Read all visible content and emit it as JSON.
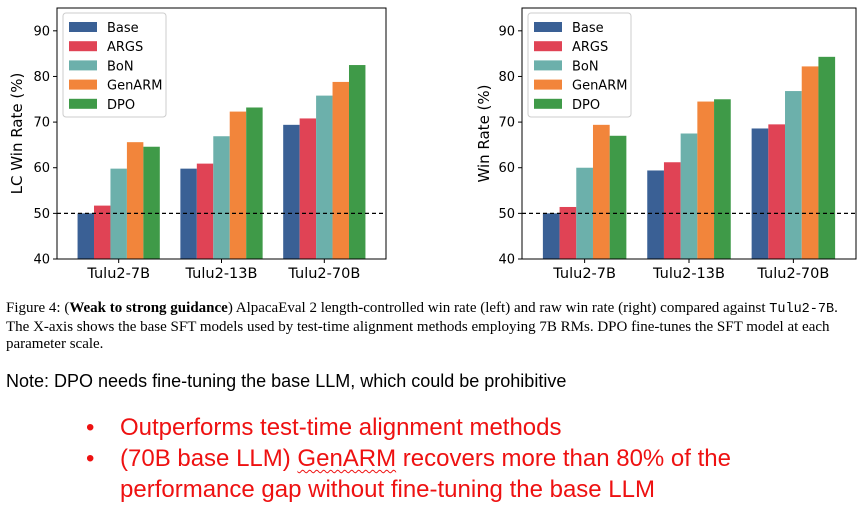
{
  "chart_data": [
    {
      "type": "bar",
      "title": "",
      "xlabel": "",
      "ylabel": "LC Win Rate (%)",
      "ylim": [
        40,
        95
      ],
      "yticks": [
        40,
        50,
        60,
        70,
        80,
        90
      ],
      "grid": false,
      "legend_position": "top-left",
      "reference_line": {
        "y": 50,
        "style": "dashed",
        "color": "#000000"
      },
      "categories": [
        "Tulu2-7B",
        "Tulu2-13B",
        "Tulu2-70B"
      ],
      "series": [
        {
          "name": "Base",
          "color": "#3a6095",
          "values": [
            50.0,
            59.8,
            69.4
          ]
        },
        {
          "name": "ARGS",
          "color": "#e04355",
          "values": [
            51.7,
            60.9,
            70.8
          ]
        },
        {
          "name": "BoN",
          "color": "#6cb0ab",
          "values": [
            59.8,
            66.9,
            75.8
          ]
        },
        {
          "name": "GenARM",
          "color": "#f2853b",
          "values": [
            65.6,
            72.3,
            78.8
          ]
        },
        {
          "name": "DPO",
          "color": "#3f9a48",
          "values": [
            64.6,
            73.2,
            82.5
          ]
        }
      ]
    },
    {
      "type": "bar",
      "title": "",
      "xlabel": "",
      "ylabel": "Win Rate (%)",
      "ylim": [
        40,
        95
      ],
      "yticks": [
        40,
        50,
        60,
        70,
        80,
        90
      ],
      "grid": false,
      "legend_position": "top-left",
      "reference_line": {
        "y": 50,
        "style": "dashed",
        "color": "#000000"
      },
      "categories": [
        "Tulu2-7B",
        "Tulu2-13B",
        "Tulu2-70B"
      ],
      "series": [
        {
          "name": "Base",
          "color": "#3a6095",
          "values": [
            50.0,
            59.4,
            68.6
          ]
        },
        {
          "name": "ARGS",
          "color": "#e04355",
          "values": [
            51.4,
            61.2,
            69.5
          ]
        },
        {
          "name": "BoN",
          "color": "#6cb0ab",
          "values": [
            60.0,
            67.5,
            76.8
          ]
        },
        {
          "name": "GenARM",
          "color": "#f2853b",
          "values": [
            69.4,
            74.5,
            82.2
          ]
        },
        {
          "name": "DPO",
          "color": "#3f9a48",
          "values": [
            67.0,
            75.0,
            84.3
          ]
        }
      ]
    }
  ],
  "caption": {
    "prefix": "Figure 4: (",
    "bold": "Weak to strong guidance",
    "part1": ") AlpacaEval 2 length-controlled win rate (left) and raw win rate (right) compared against ",
    "mono": "Tulu2-7B",
    "part2": ". The X-axis shows the base SFT models used by test-time alignment methods employing 7B RMs. DPO fine-tunes the SFT model at each parameter scale."
  },
  "note": "Note: DPO needs fine-tuning the base LLM, which could be prohibitive",
  "bullets": {
    "marker": "•",
    "item1": "Outperforms test-time alignment methods",
    "item2_pre": "(70B base LLM) ",
    "item2_word": "GenARM",
    "item2_post": " recovers more than 80% of the performance gap without fine-tuning the base LLM"
  },
  "colors": {
    "bullet_text": "#ee1111",
    "axis": "#000000"
  }
}
